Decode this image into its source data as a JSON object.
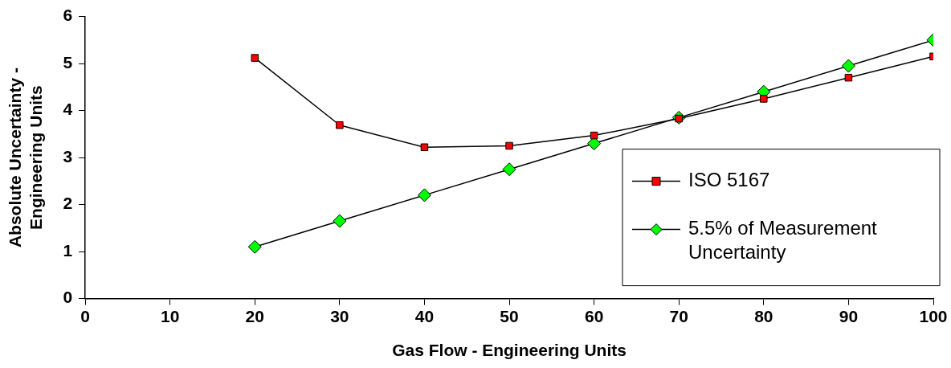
{
  "chart_data": {
    "type": "line",
    "xlabel": "Gas Flow - Engineering Units",
    "ylabel": "Absolute Uncertainty - Engineering Units",
    "x": [
      20,
      30,
      40,
      50,
      60,
      70,
      80,
      90,
      100
    ],
    "series": [
      {
        "name": "ISO 5167",
        "color": "#ff0000",
        "marker": "square",
        "values": [
          5.12,
          3.69,
          3.22,
          3.25,
          3.47,
          3.83,
          4.25,
          4.7,
          5.15
        ]
      },
      {
        "name": "5.5% of Measurement Uncertainty",
        "color": "#00ff00",
        "marker": "diamond",
        "values": [
          1.1,
          1.65,
          2.2,
          2.75,
          3.3,
          3.85,
          4.4,
          4.95,
          5.5
        ]
      }
    ],
    "xlim": [
      0,
      100
    ],
    "xticks": [
      0,
      10,
      20,
      30,
      40,
      50,
      60,
      70,
      80,
      90,
      100
    ],
    "ylim": [
      0,
      6
    ],
    "yticks": [
      0,
      1,
      2,
      3,
      4,
      5,
      6
    ],
    "grid": false,
    "legend": "bottom right",
    "line_style": "solid"
  }
}
